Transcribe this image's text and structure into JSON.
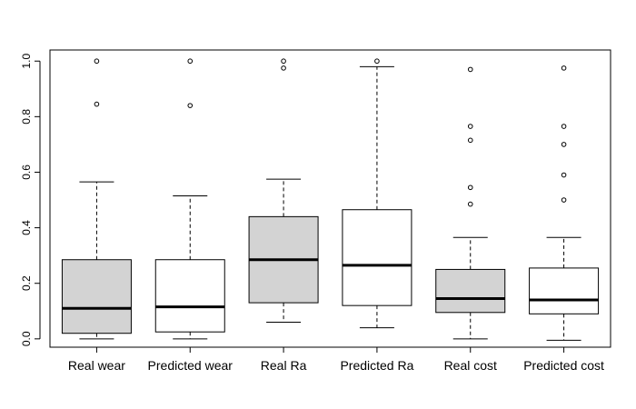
{
  "chart_data": {
    "type": "boxplot",
    "title": "",
    "xlabel": "",
    "ylabel": "",
    "ylim": [
      -0.03,
      1.04
    ],
    "yticks": [
      0.0,
      0.2,
      0.4,
      0.6,
      0.8,
      1.0
    ],
    "ytick_labels": [
      "0.0",
      "0.2",
      "0.4",
      "0.6",
      "0.8",
      "1.0"
    ],
    "grid": false,
    "boxes": [
      {
        "label": "Real wear",
        "fill": "#d3d3d3",
        "whisker_low": 0.0,
        "q1": 0.02,
        "median": 0.11,
        "q3": 0.285,
        "whisker_high": 0.565,
        "outliers": [
          0.845,
          1.0
        ]
      },
      {
        "label": "Predicted wear",
        "fill": "#ffffff",
        "whisker_low": 0.0,
        "q1": 0.025,
        "median": 0.115,
        "q3": 0.285,
        "whisker_high": 0.515,
        "outliers": [
          0.84,
          1.0
        ]
      },
      {
        "label": "Real Ra",
        "fill": "#d3d3d3",
        "whisker_low": 0.06,
        "q1": 0.13,
        "median": 0.285,
        "q3": 0.44,
        "whisker_high": 0.575,
        "outliers": [
          0.975,
          1.0
        ]
      },
      {
        "label": "Predicted Ra",
        "fill": "#ffffff",
        "whisker_low": 0.04,
        "q1": 0.12,
        "median": 0.265,
        "q3": 0.465,
        "whisker_high": 0.98,
        "outliers": [
          1.0
        ]
      },
      {
        "label": "Real cost",
        "fill": "#d3d3d3",
        "whisker_low": 0.0,
        "q1": 0.095,
        "median": 0.145,
        "q3": 0.25,
        "whisker_high": 0.365,
        "outliers": [
          0.485,
          0.545,
          0.715,
          0.765,
          0.97
        ]
      },
      {
        "label": "Predicted cost",
        "fill": "#ffffff",
        "whisker_low": -0.005,
        "q1": 0.09,
        "median": 0.14,
        "q3": 0.255,
        "whisker_high": 0.365,
        "outliers": [
          0.5,
          0.59,
          0.7,
          0.765,
          0.975
        ]
      }
    ]
  }
}
